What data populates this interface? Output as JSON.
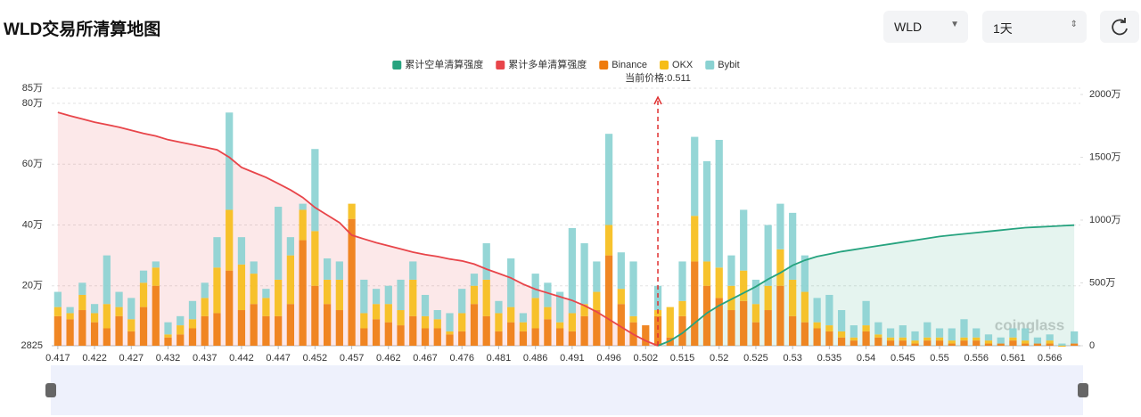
{
  "header": {
    "title": "WLD交易所清算地图",
    "symbol": "WLD",
    "interval": "1天"
  },
  "chart_data": {
    "type": "bar",
    "stacked": true,
    "categories": [
      "0.417",
      null,
      null,
      "0.422",
      null,
      null,
      "0.427",
      null,
      null,
      "0.432",
      null,
      null,
      "0.437",
      null,
      null,
      "0.442",
      null,
      null,
      "0.447",
      null,
      null,
      "0.452",
      null,
      null,
      "0.457",
      null,
      null,
      "0.462",
      null,
      null,
      "0.467",
      null,
      null,
      "0.476",
      null,
      null,
      "0.481",
      null,
      null,
      "0.486",
      null,
      null,
      "0.491",
      null,
      null,
      "0.496",
      null,
      null,
      "0.502",
      null,
      null,
      "0.515",
      null,
      null,
      "0.52",
      null,
      null,
      "0.525",
      null,
      null,
      "0.53",
      null,
      null,
      "0.535",
      null,
      null,
      "0.54",
      null,
      null,
      "0.545",
      null,
      null,
      "0.55",
      null,
      null,
      "0.556",
      null,
      null,
      "0.561",
      null,
      null,
      "0.566",
      null,
      null
    ],
    "series": [
      {
        "name": "累计空单清算强度",
        "type": "line",
        "axis": "y2",
        "color": "#26a37f",
        "values": [
          null,
          null,
          null,
          null,
          null,
          null,
          null,
          null,
          null,
          null,
          null,
          null,
          null,
          null,
          null,
          null,
          null,
          null,
          null,
          null,
          null,
          null,
          null,
          null,
          null,
          null,
          null,
          null,
          null,
          null,
          null,
          null,
          null,
          null,
          null,
          null,
          null,
          null,
          null,
          null,
          null,
          null,
          null,
          null,
          null,
          null,
          null,
          null,
          null,
          0,
          400000,
          1000000,
          1800000,
          2600000,
          3200000,
          3700000,
          4200000,
          4700000,
          5300000,
          5800000,
          6400000,
          6800000,
          7100000,
          7300000,
          7500000,
          7650000,
          7800000,
          7950000,
          8100000,
          8250000,
          8400000,
          8550000,
          8700000,
          8800000,
          8900000,
          9000000,
          9100000,
          9200000,
          9300000,
          9400000,
          9450000,
          9500000,
          9550000,
          9600000
        ]
      },
      {
        "name": "累计多单清算强度",
        "type": "line",
        "axis": "y2",
        "color": "#e8454a",
        "values": [
          18580000,
          18300000,
          18050000,
          17800000,
          17600000,
          17400000,
          17150000,
          16900000,
          16700000,
          16400000,
          16200000,
          16000000,
          15800000,
          15600000,
          15000000,
          14200000,
          13800000,
          13400000,
          12900000,
          12400000,
          11800000,
          11000000,
          10400000,
          9800000,
          8800000,
          8500000,
          8200000,
          7950000,
          7700000,
          7450000,
          7250000,
          7100000,
          6900000,
          6750000,
          6500000,
          6100000,
          5750000,
          5400000,
          4900000,
          4500000,
          4200000,
          3900000,
          3600000,
          3200000,
          2700000,
          2100000,
          1500000,
          900000,
          400000,
          0,
          null,
          null,
          null,
          null,
          null,
          null,
          null,
          null,
          null,
          null,
          null,
          null,
          null,
          null,
          null,
          null,
          null,
          null,
          null,
          null,
          null,
          null,
          null,
          null,
          null,
          null,
          null,
          null,
          null,
          null,
          null,
          null,
          null,
          null
        ]
      },
      {
        "name": "Binance",
        "color": "#ee7a0c",
        "values": [
          100000,
          90000,
          120000,
          80000,
          60000,
          100000,
          50000,
          130000,
          200000,
          30000,
          40000,
          60000,
          100000,
          110000,
          250000,
          120000,
          140000,
          100000,
          100000,
          140000,
          350000,
          200000,
          140000,
          120000,
          420000,
          60000,
          90000,
          80000,
          70000,
          100000,
          60000,
          60000,
          40000,
          50000,
          140000,
          100000,
          50000,
          80000,
          50000,
          60000,
          90000,
          60000,
          50000,
          100000,
          120000,
          300000,
          140000,
          80000,
          70000,
          100000,
          30000,
          100000,
          280000,
          200000,
          160000,
          120000,
          150000,
          80000,
          120000,
          200000,
          100000,
          80000,
          60000,
          50000,
          30000,
          20000,
          50000,
          30000,
          20000,
          20000,
          10000,
          20000,
          20000,
          10000,
          20000,
          20000,
          10000,
          10000,
          20000,
          10000,
          10000,
          10000,
          0,
          10000
        ]
      },
      {
        "name": "OKX",
        "color": "#f6bd16",
        "values": [
          30000,
          20000,
          50000,
          30000,
          80000,
          30000,
          40000,
          80000,
          60000,
          10000,
          30000,
          30000,
          60000,
          150000,
          200000,
          150000,
          100000,
          60000,
          120000,
          160000,
          100000,
          180000,
          80000,
          100000,
          50000,
          50000,
          50000,
          60000,
          50000,
          120000,
          40000,
          30000,
          10000,
          60000,
          60000,
          120000,
          60000,
          50000,
          30000,
          100000,
          40000,
          20000,
          60000,
          40000,
          60000,
          100000,
          50000,
          20000,
          0,
          20000,
          100000,
          50000,
          150000,
          80000,
          100000,
          80000,
          100000,
          60000,
          80000,
          120000,
          120000,
          100000,
          20000,
          20000,
          20000,
          10000,
          20000,
          10000,
          10000,
          10000,
          10000,
          10000,
          10000,
          10000,
          10000,
          10000,
          10000,
          0,
          10000,
          10000,
          0,
          10000,
          0,
          0
        ]
      },
      {
        "name": "Bybit",
        "color": "#8ad2d2",
        "values": [
          50000,
          20000,
          40000,
          30000,
          160000,
          50000,
          70000,
          40000,
          20000,
          40000,
          30000,
          60000,
          50000,
          100000,
          320000,
          90000,
          40000,
          30000,
          240000,
          60000,
          20000,
          270000,
          70000,
          60000,
          0,
          110000,
          50000,
          60000,
          100000,
          60000,
          70000,
          30000,
          60000,
          80000,
          40000,
          120000,
          40000,
          160000,
          30000,
          80000,
          80000,
          100000,
          280000,
          200000,
          100000,
          300000,
          120000,
          180000,
          0,
          80000,
          0,
          130000,
          260000,
          330000,
          420000,
          100000,
          200000,
          80000,
          200000,
          150000,
          220000,
          120000,
          80000,
          100000,
          70000,
          40000,
          80000,
          40000,
          30000,
          40000,
          30000,
          50000,
          30000,
          40000,
          60000,
          30000,
          20000,
          20000,
          30000,
          40000,
          20000,
          20000,
          10000,
          40000
        ]
      }
    ],
    "ylim": [
      2825,
      850000
    ],
    "yticks": [
      2825,
      {
        "value": 200000,
        "label": "20万"
      },
      {
        "value": 400000,
        "label": "40万"
      },
      {
        "value": 600000,
        "label": "60万"
      },
      {
        "value": 800000,
        "label": "80万"
      },
      {
        "value": 850000,
        "label": "85万"
      }
    ],
    "y2lim": [
      0,
      20500000
    ],
    "y2ticks": [
      0,
      {
        "value": 5000000,
        "label": "500万"
      },
      {
        "value": 10000000,
        "label": "1000万"
      },
      {
        "value": 15000000,
        "label": "1500万"
      },
      {
        "value": 20000000,
        "label": "2000万"
      }
    ],
    "grid": true,
    "legend": "top",
    "price_label": "当前价格:0.511",
    "watermark": "coinglass"
  }
}
